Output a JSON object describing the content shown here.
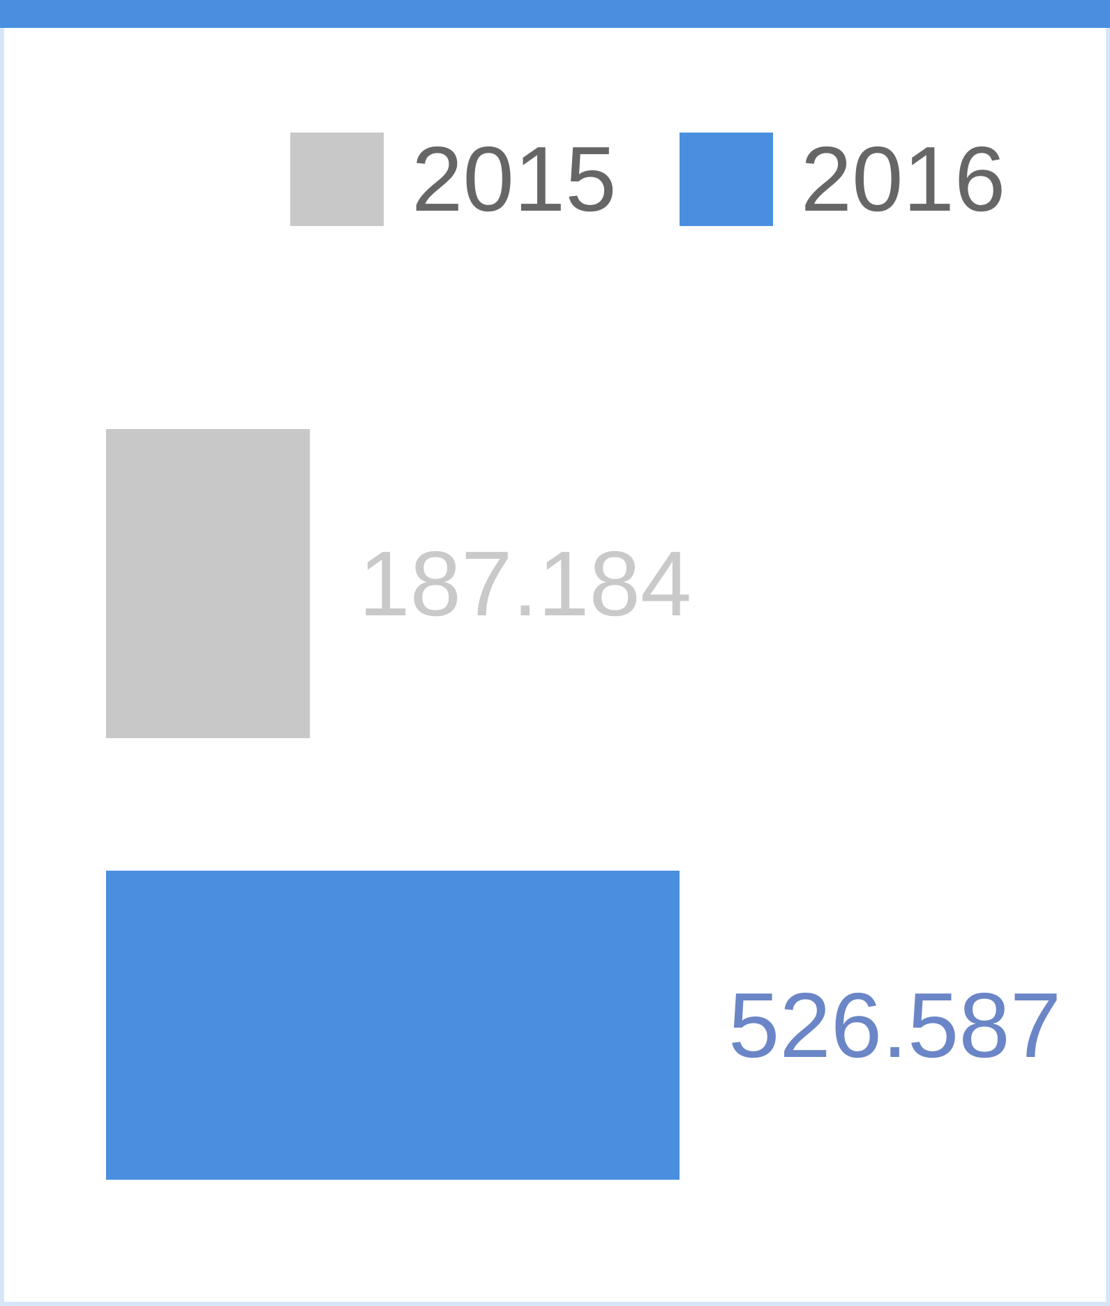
{
  "colors": {
    "accent": "#4a8fdf",
    "series_2015": "#c8c8c8",
    "series_2016": "#4a8fdf",
    "label_2015": "#c9c9c9",
    "label_2016": "#6b86c7"
  },
  "legend": [
    {
      "label": "2015",
      "color": "#c8c8c8"
    },
    {
      "label": "2016",
      "color": "#4a8fdf"
    }
  ],
  "chart_data": {
    "type": "bar",
    "orientation": "horizontal",
    "categories": [
      "2015",
      "2016"
    ],
    "values": [
      187.184,
      526.587
    ],
    "value_labels": [
      "187.184",
      "526.587"
    ],
    "series": [
      {
        "name": "2015",
        "values": [
          187.184,
          null
        ]
      },
      {
        "name": "2016",
        "values": [
          null,
          526.587
        ]
      }
    ],
    "title": "",
    "xlabel": "",
    "ylabel": "",
    "grid": false,
    "legend_position": "top-right"
  }
}
